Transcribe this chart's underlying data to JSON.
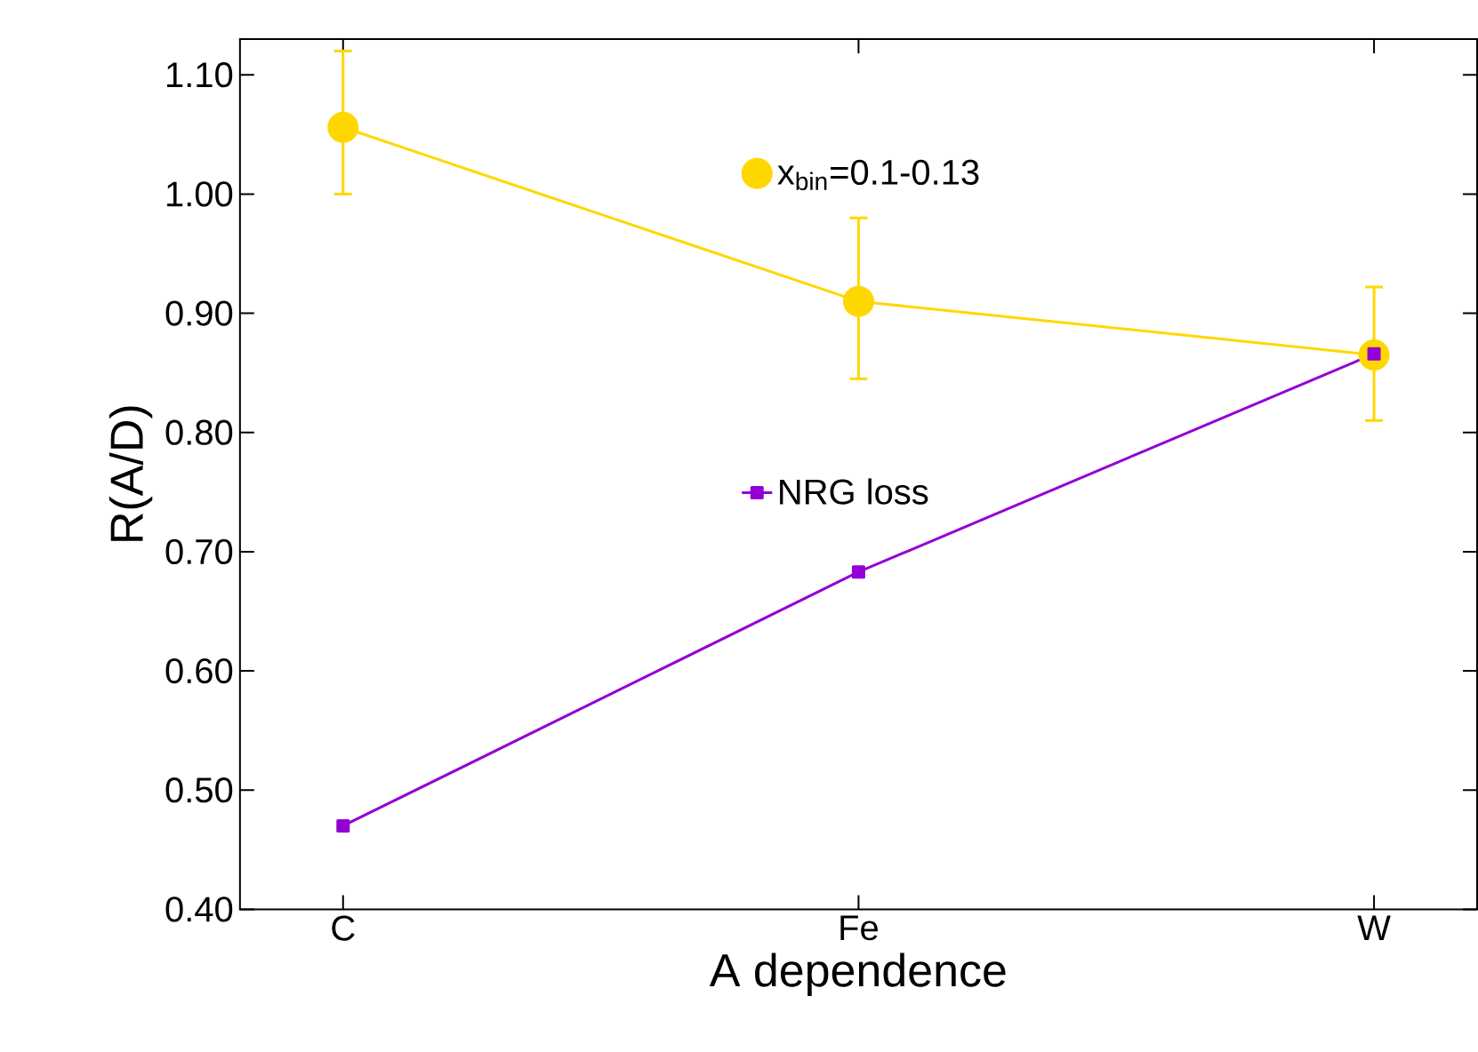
{
  "chart_data": {
    "type": "line",
    "xlabel": "A dependence",
    "ylabel": "R(A/D)",
    "ylim": [
      0.4,
      1.13
    ],
    "categories": [
      "C",
      "Fe",
      "W"
    ],
    "yticks": [
      {
        "value": 0.4,
        "label": "0.40"
      },
      {
        "value": 0.5,
        "label": "0.50"
      },
      {
        "value": 0.6,
        "label": "0.60"
      },
      {
        "value": 0.7,
        "label": "0.70"
      },
      {
        "value": 0.8,
        "label": "0.80"
      },
      {
        "value": 0.9,
        "label": "0.90"
      },
      {
        "value": 1.0,
        "label": "1.00"
      },
      {
        "value": 1.1,
        "label": "1.10"
      }
    ],
    "series": [
      {
        "name": "x$_{bin}$=0.1-0.13",
        "color": "#ffd700",
        "values": [
          1.056,
          0.91,
          0.865
        ],
        "errors": [
          [
            1.0,
            1.12
          ],
          [
            0.845,
            0.98
          ],
          [
            0.81,
            0.922
          ]
        ],
        "marker": "circle"
      },
      {
        "name": "NRG loss",
        "color": "#9400d3",
        "values": [
          0.47,
          0.683,
          0.866
        ],
        "marker": "square"
      }
    ],
    "legend": "top",
    "grid": false
  }
}
